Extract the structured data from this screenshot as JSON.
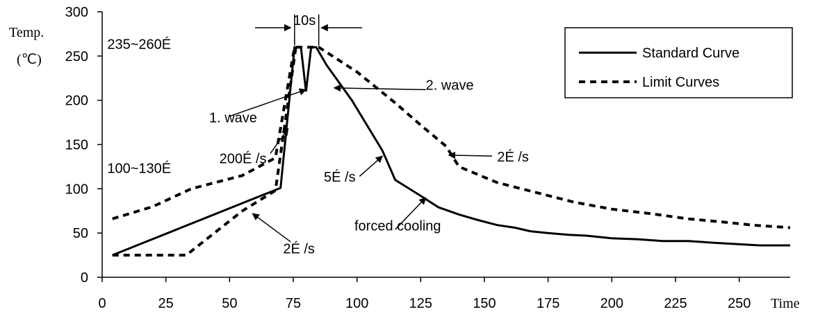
{
  "chart_data": {
    "type": "line",
    "ylabel_line1": "Temp.",
    "ylabel_line2": "(℃)",
    "xlabel": "Time",
    "xlim": [
      0,
      270
    ],
    "ylim": [
      0,
      300
    ],
    "xticks": [
      0,
      25,
      50,
      75,
      100,
      125,
      150,
      175,
      200,
      225,
      250
    ],
    "yticks": [
      0,
      50,
      100,
      150,
      200,
      250,
      300
    ],
    "grid": false,
    "legend_position": "top-right",
    "series": [
      {
        "name": "Standard Curve",
        "style": "solid",
        "points": [
          [
            4,
            25
          ],
          [
            70,
            101
          ],
          [
            75.5,
            260
          ],
          [
            78,
            260
          ],
          [
            80,
            210
          ],
          [
            82,
            260
          ],
          [
            84,
            260
          ],
          [
            88,
            240
          ],
          [
            98,
            200
          ],
          [
            110,
            143
          ],
          [
            115,
            110
          ],
          [
            125,
            92
          ],
          [
            132,
            79
          ],
          [
            140,
            71
          ],
          [
            147,
            65
          ],
          [
            155,
            59
          ],
          [
            162,
            56
          ],
          [
            168,
            52
          ],
          [
            175,
            50
          ],
          [
            183,
            48
          ],
          [
            190,
            47
          ],
          [
            200,
            44
          ],
          [
            210,
            43
          ],
          [
            220,
            41
          ],
          [
            230,
            41
          ],
          [
            240,
            39
          ],
          [
            258,
            36
          ],
          [
            270,
            36
          ]
        ]
      },
      {
        "name": "Limit Curves",
        "style": "dashed",
        "points": [
          [
            4,
            66
          ],
          [
            20,
            80
          ],
          [
            35,
            100
          ],
          [
            55,
            115
          ],
          [
            68,
            135
          ],
          [
            75.5,
            260
          ],
          [
            85,
            260
          ],
          [
            100,
            232
          ],
          [
            115,
            197
          ],
          [
            125,
            172
          ],
          [
            135,
            148
          ],
          [
            140,
            125
          ],
          [
            155,
            107
          ],
          [
            170,
            96
          ],
          [
            185,
            85
          ],
          [
            200,
            77
          ],
          [
            215,
            72
          ],
          [
            230,
            66
          ],
          [
            245,
            62
          ],
          [
            255,
            59
          ],
          [
            270,
            56
          ]
        ]
      },
      {
        "name": "Limit Curves",
        "style": "dashed",
        "points": [
          [
            4,
            25
          ],
          [
            33,
            25
          ],
          [
            55,
            75
          ],
          [
            68,
            98
          ],
          [
            76,
            260
          ]
        ]
      }
    ],
    "annotations": [
      {
        "id": "range-high",
        "text": "235~260É",
        "at": [
          2,
          258
        ]
      },
      {
        "id": "range-low",
        "text": "100~130É",
        "at": [
          2,
          118
        ]
      },
      {
        "id": "wave-1",
        "text": "1. wave",
        "at": [
          42,
          175
        ]
      },
      {
        "id": "wave-2",
        "text": "2. wave",
        "at": [
          127,
          212
        ]
      },
      {
        "id": "rate-200",
        "text": "200É /s",
        "at": [
          46,
          129
        ]
      },
      {
        "id": "rate-5",
        "text": "5É /s",
        "at": [
          87,
          108
        ]
      },
      {
        "id": "rate-2-upper",
        "text": "2É /s",
        "at": [
          155,
          131
        ]
      },
      {
        "id": "rate-2-lower",
        "text": "2É /s",
        "at": [
          71,
          27
        ]
      },
      {
        "id": "forced-cooling",
        "text": "forced cooling",
        "at": [
          99,
          53
        ]
      },
      {
        "id": "dwell-time",
        "text": "10s",
        "at": [
          75,
          285
        ]
      }
    ],
    "arrows": [
      {
        "id": "arrow-wave-1",
        "from": [
          50,
          182
        ],
        "to": [
          80,
          212
        ]
      },
      {
        "id": "arrow-rate-200",
        "from": [
          66,
          140
        ],
        "to": [
          73,
          168
        ]
      },
      {
        "id": "arrow-wave-2",
        "from": [
          127,
          212
        ],
        "to": [
          91,
          214
        ]
      },
      {
        "id": "arrow-rate-5",
        "from": [
          101,
          114
        ],
        "to": [
          110,
          137
        ]
      },
      {
        "id": "arrow-rate-2-upper",
        "from": [
          153,
          137
        ],
        "to": [
          136,
          138
        ]
      },
      {
        "id": "arrow-rate-2-lower",
        "from": [
          74,
          40
        ],
        "to": [
          59,
          72
        ]
      },
      {
        "id": "arrow-forced-cooling",
        "from": [
          115,
          54
        ],
        "to": [
          127,
          90
        ]
      },
      {
        "id": "arrow-dwell-left",
        "from": [
          60,
          282
        ],
        "to": [
          74,
          282
        ]
      },
      {
        "id": "arrow-dwell-right",
        "from": [
          102,
          282
        ],
        "to": [
          86,
          282
        ]
      }
    ]
  }
}
